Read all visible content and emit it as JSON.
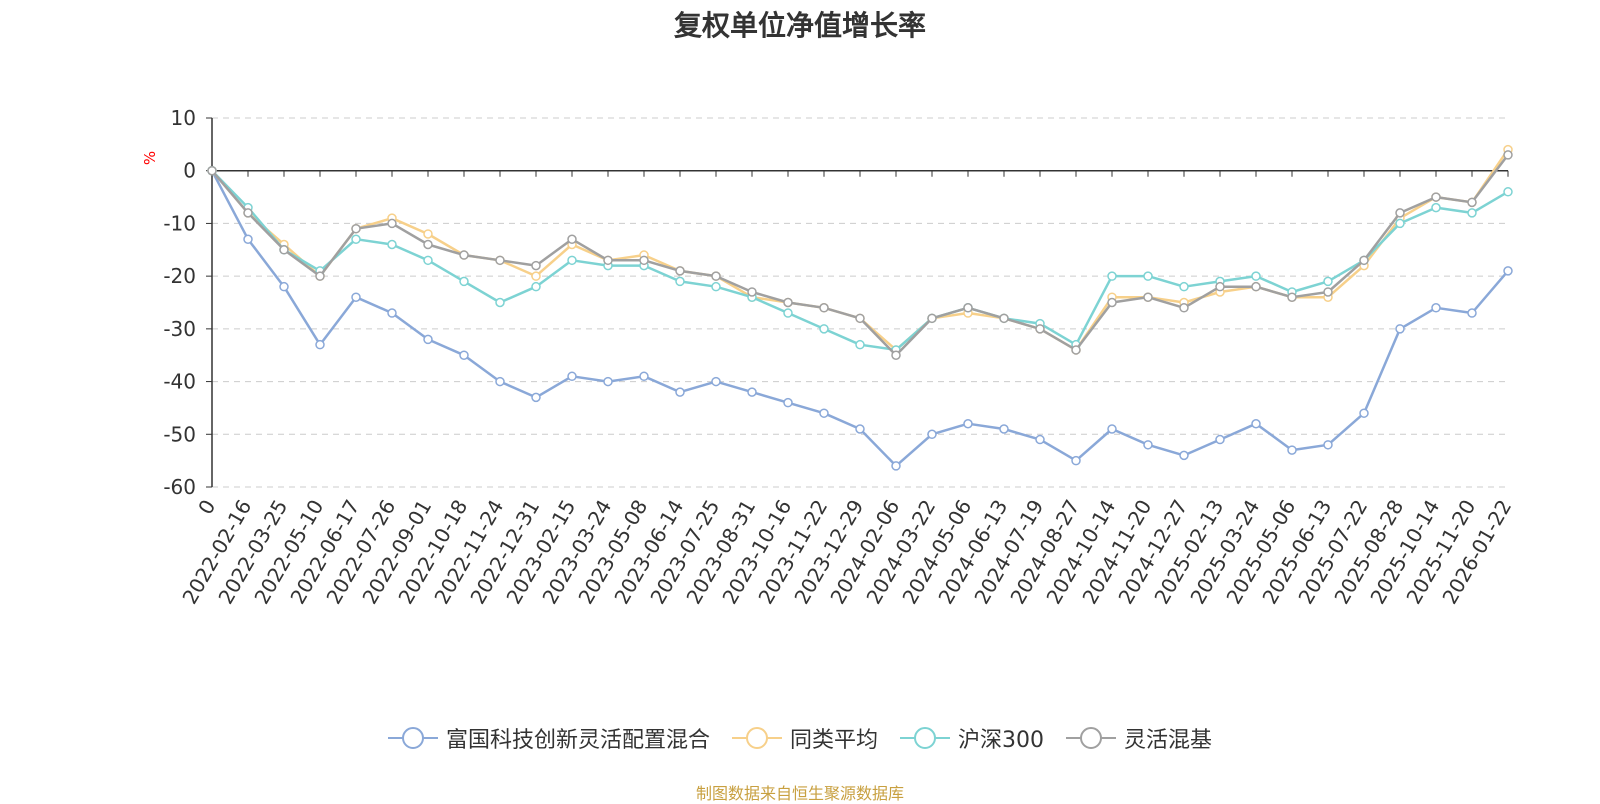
{
  "chart_data": {
    "type": "line",
    "title": "复权单位净值增长率",
    "xlabel": "",
    "ylabel": "%",
    "ylim": [
      -60,
      10
    ],
    "yticks": [
      10,
      0,
      -10,
      -20,
      -30,
      -40,
      -50,
      -60
    ],
    "grid": true,
    "legend_position": "bottom",
    "x": [
      "0",
      "2022-02-16",
      "2022-03-25",
      "2022-05-10",
      "2022-06-17",
      "2022-07-26",
      "2022-09-01",
      "2022-10-18",
      "2022-11-24",
      "2022-12-31",
      "2023-02-15",
      "2023-03-24",
      "2023-05-08",
      "2023-06-14",
      "2023-07-25",
      "2023-08-31",
      "2023-10-16",
      "2023-11-22",
      "2023-12-29",
      "2024-02-06",
      "2024-03-22",
      "2024-05-06",
      "2024-06-13",
      "2024-07-19",
      "2024-08-27",
      "2024-10-14",
      "2024-11-20",
      "2024-12-27",
      "2025-02-13",
      "2025-03-24",
      "2025-05-06",
      "2025-06-13",
      "2025-07-22",
      "2025-08-28",
      "2025-10-14",
      "2025-11-20",
      "2026-01-22"
    ],
    "series": [
      {
        "name": "富国科技创新灵活配置混合",
        "color": "#8aa8d8",
        "values": [
          0,
          -13,
          -22,
          -33,
          -24,
          -27,
          -32,
          -35,
          -40,
          -43,
          -39,
          -40,
          -39,
          -42,
          -40,
          -42,
          -44,
          -46,
          -49,
          -56,
          -50,
          -48,
          -49,
          -51,
          -55,
          -49,
          -52,
          -54,
          -51,
          -48,
          -53,
          -52,
          -46,
          -30,
          -26,
          -27,
          -19
        ]
      },
      {
        "name": "同类平均",
        "color": "#f7d08a",
        "values": [
          0,
          -8,
          -14,
          -20,
          -11,
          -9,
          -12,
          -16,
          -17,
          -20,
          -14,
          -17,
          -16,
          -19,
          -20,
          -24,
          -25,
          -26,
          -28,
          -34,
          -28,
          -27,
          -28,
          -30,
          -34,
          -24,
          -24,
          -25,
          -23,
          -22,
          -24,
          -24,
          -18,
          -9,
          -5,
          -6,
          4
        ]
      },
      {
        "name": "沪深300",
        "color": "#7dd3d3",
        "values": [
          0,
          -7,
          -15,
          -19,
          -13,
          -14,
          -17,
          -21,
          -25,
          -22,
          -17,
          -18,
          -18,
          -21,
          -22,
          -24,
          -27,
          -30,
          -33,
          -34,
          -28,
          -26,
          -28,
          -29,
          -33,
          -20,
          -20,
          -22,
          -21,
          -20,
          -23,
          -21,
          -17,
          -10,
          -7,
          -8,
          -4
        ]
      },
      {
        "name": "灵活混基",
        "color": "#a0a0a0",
        "values": [
          0,
          -8,
          -15,
          -20,
          -11,
          -10,
          -14,
          -16,
          -17,
          -18,
          -13,
          -17,
          -17,
          -19,
          -20,
          -23,
          -25,
          -26,
          -28,
          -35,
          -28,
          -26,
          -28,
          -30,
          -34,
          -25,
          -24,
          -26,
          -22,
          -22,
          -24,
          -23,
          -17,
          -8,
          -5,
          -6,
          3
        ]
      }
    ]
  },
  "source": "制图数据来自恒生聚源数据库",
  "colors": {
    "axis": "#333333",
    "grid": "#cccccc",
    "unit": "#ff0000",
    "source": "#c8a040"
  }
}
